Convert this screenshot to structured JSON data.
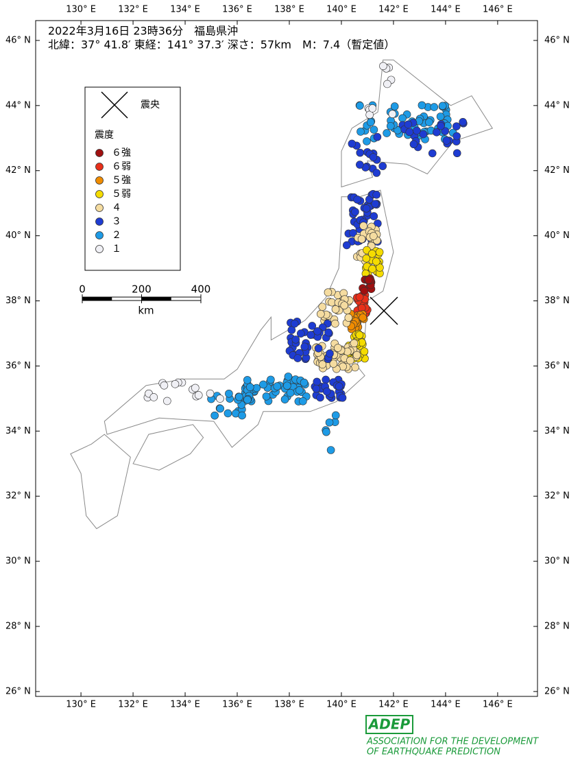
{
  "map": {
    "title": "2022年3月16日 23時36分　福島県沖",
    "subtitle": "北緯：37° 41.8′ 東経：141° 37.3′ 深さ：57km　M：7.4（暫定値）",
    "lon_range": [
      128.26,
      147.53
    ],
    "lat_range": [
      25.85,
      46.61
    ],
    "lon_ticks": [
      {
        "value": 130,
        "label": "130° E"
      },
      {
        "value": 132,
        "label": "132° E"
      },
      {
        "value": 134,
        "label": "134° E"
      },
      {
        "value": 136,
        "label": "136° E"
      },
      {
        "value": 138,
        "label": "138° E"
      },
      {
        "value": 140,
        "label": "140° E"
      },
      {
        "value": 142,
        "label": "142° E"
      },
      {
        "value": 144,
        "label": "144° E"
      },
      {
        "value": 146,
        "label": "146° E"
      }
    ],
    "lat_ticks": [
      {
        "value": 46,
        "label": "46° N"
      },
      {
        "value": 44,
        "label": "44° N"
      },
      {
        "value": 42,
        "label": "42° N"
      },
      {
        "value": 40,
        "label": "40° N"
      },
      {
        "value": 38,
        "label": "38° N"
      },
      {
        "value": 36,
        "label": "36° N"
      },
      {
        "value": 34,
        "label": "34° N"
      },
      {
        "value": 32,
        "label": "32° N"
      },
      {
        "value": 30,
        "label": "30° N"
      },
      {
        "value": 28,
        "label": "28° N"
      },
      {
        "value": 26,
        "label": "26° N"
      }
    ],
    "legend": {
      "epicenter_label": "震央",
      "intensity_title": "震度",
      "items": [
        {
          "label": "６強",
          "color": "#a01010"
        },
        {
          "label": "６弱",
          "color": "#e8301a"
        },
        {
          "label": "５強",
          "color": "#f08c00"
        },
        {
          "label": "５弱",
          "color": "#f5dc00"
        },
        {
          "label": "４",
          "color": "#f5dca0"
        },
        {
          "label": "３",
          "color": "#1e3cd2"
        },
        {
          "label": "２",
          "color": "#1e9be6"
        },
        {
          "label": "１",
          "color": "#f0f0f5"
        }
      ]
    },
    "scale_bar": {
      "ticks": [
        0,
        200,
        400
      ],
      "unit": "km"
    },
    "footer": {
      "logo": "ADEP",
      "line1": "ASSOCIATION  FOR THE DEVELOPMENT",
      "line2": "OF EARTHQUAKE PREDICTION"
    }
  }
}
